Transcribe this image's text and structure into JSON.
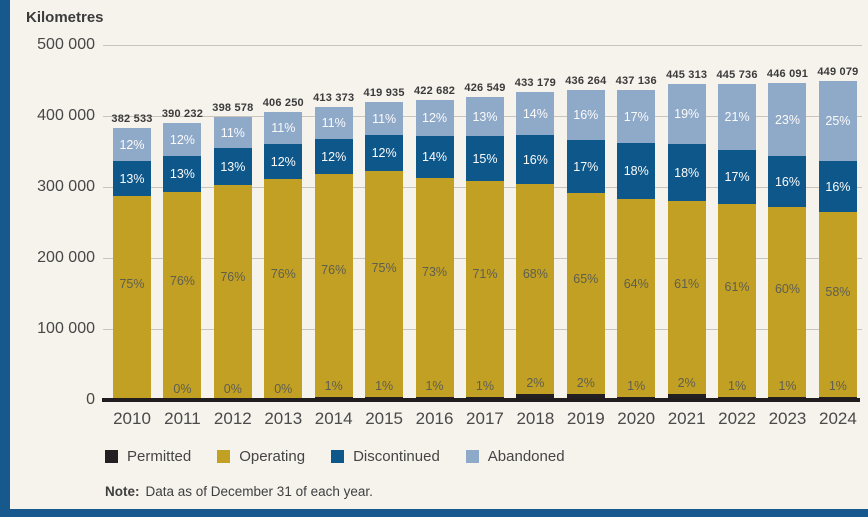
{
  "colors": {
    "background": "#f6f2ec",
    "accent_bar": "#17598c",
    "gridline": "#c9c5bd",
    "baseline": "#211d1e"
  },
  "note": {
    "label": "Note:",
    "text": "Data as of December 31 of each year."
  },
  "chart_data": {
    "type": "bar",
    "stacked": true,
    "title": "",
    "ylabel": "Kilometres",
    "xlabel": "",
    "grid": true,
    "legend_position": "bottom",
    "ylim": [
      0,
      500000
    ],
    "y_ticks": [
      {
        "label": "500 000",
        "value": 500000
      },
      {
        "label": "400 000",
        "value": 400000
      },
      {
        "label": "300 000",
        "value": 300000
      },
      {
        "label": "200 000",
        "value": 200000
      },
      {
        "label": "100 000",
        "value": 100000
      },
      {
        "label": "0",
        "value": 0
      }
    ],
    "categories": [
      "2010",
      "2011",
      "2012",
      "2013",
      "2014",
      "2015",
      "2016",
      "2017",
      "2018",
      "2019",
      "2020",
      "2021",
      "2022",
      "2023",
      "2024"
    ],
    "totals": [
      382533,
      390232,
      398578,
      406250,
      413373,
      419935,
      422682,
      426549,
      433179,
      436264,
      437136,
      445313,
      445736,
      446091,
      449079
    ],
    "total_labels": [
      "382 533",
      "390 232",
      "398 578",
      "406 250",
      "413 373",
      "419 935",
      "422 682",
      "426 549",
      "433 179",
      "436 264",
      "437 136",
      "445 313",
      "445 736",
      "446 091",
      "449 079"
    ],
    "series": [
      {
        "name": "Permitted",
        "color": "#241f20",
        "pct": [
          null,
          0,
          0,
          0,
          1,
          1,
          1,
          1,
          2,
          2,
          1,
          2,
          1,
          1,
          1
        ]
      },
      {
        "name": "Operating",
        "color": "#c2a024",
        "pct": [
          75,
          76,
          76,
          76,
          76,
          75,
          73,
          71,
          68,
          65,
          64,
          61,
          61,
          60,
          58
        ]
      },
      {
        "name": "Discontinued",
        "color": "#0e578a",
        "pct": [
          13,
          13,
          13,
          12,
          12,
          12,
          14,
          15,
          16,
          17,
          18,
          18,
          17,
          16,
          16
        ]
      },
      {
        "name": "Abandoned",
        "color": "#8fa9c9",
        "pct": [
          12,
          12,
          11,
          11,
          11,
          11,
          12,
          13,
          14,
          16,
          17,
          19,
          21,
          23,
          25
        ]
      }
    ]
  }
}
